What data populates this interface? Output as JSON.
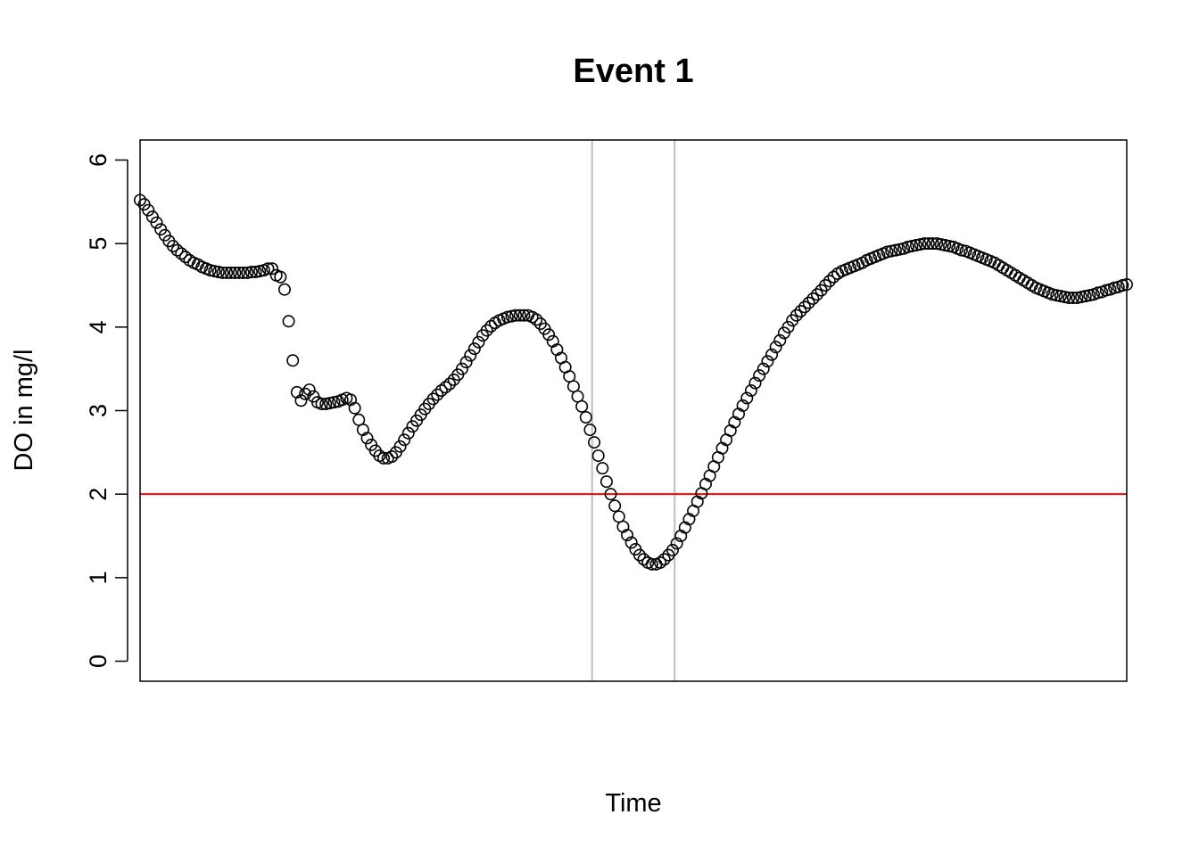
{
  "chart_data": {
    "type": "scatter",
    "title": "Event 1",
    "xlabel": "Time",
    "ylabel": "DO in mg/l",
    "ylim": [
      -0.24,
      6.24
    ],
    "xlim": [
      0,
      239
    ],
    "yticks": [
      "0",
      "1",
      "2",
      "3",
      "4",
      "5",
      "6"
    ],
    "grid": false,
    "threshold": {
      "y": 2,
      "color": "#ff0000"
    },
    "vlines": {
      "x": [
        109.5,
        129.5
      ],
      "color": "#bebebe"
    },
    "point_color": "#000000",
    "points": [
      [
        0,
        5.52
      ],
      [
        1,
        5.47
      ],
      [
        2,
        5.4
      ],
      [
        3,
        5.32
      ],
      [
        4,
        5.25
      ],
      [
        5,
        5.17
      ],
      [
        6,
        5.1
      ],
      [
        7,
        5.03
      ],
      [
        8,
        4.97
      ],
      [
        9,
        4.92
      ],
      [
        10,
        4.88
      ],
      [
        11,
        4.84
      ],
      [
        12,
        4.8
      ],
      [
        13,
        4.77
      ],
      [
        14,
        4.75
      ],
      [
        15,
        4.72
      ],
      [
        16,
        4.7
      ],
      [
        17,
        4.68
      ],
      [
        18,
        4.67
      ],
      [
        19,
        4.66
      ],
      [
        20,
        4.65
      ],
      [
        21,
        4.65
      ],
      [
        22,
        4.65
      ],
      [
        23,
        4.65
      ],
      [
        24,
        4.65
      ],
      [
        25,
        4.65
      ],
      [
        26,
        4.65
      ],
      [
        27,
        4.66
      ],
      [
        28,
        4.66
      ],
      [
        29,
        4.67
      ],
      [
        30,
        4.68
      ],
      [
        31,
        4.7
      ],
      [
        32,
        4.7
      ],
      [
        33,
        4.62
      ],
      [
        34,
        4.6
      ],
      [
        35,
        4.45
      ],
      [
        36,
        4.07
      ],
      [
        37,
        3.6
      ],
      [
        38,
        3.22
      ],
      [
        39,
        3.12
      ],
      [
        40,
        3.2
      ],
      [
        41,
        3.25
      ],
      [
        42,
        3.17
      ],
      [
        43,
        3.1
      ],
      [
        44,
        3.08
      ],
      [
        45,
        3.08
      ],
      [
        46,
        3.09
      ],
      [
        47,
        3.1
      ],
      [
        48,
        3.11
      ],
      [
        49,
        3.13
      ],
      [
        50,
        3.15
      ],
      [
        51,
        3.13
      ],
      [
        52,
        3.03
      ],
      [
        53,
        2.89
      ],
      [
        54,
        2.77
      ],
      [
        55,
        2.67
      ],
      [
        56,
        2.59
      ],
      [
        57,
        2.52
      ],
      [
        58,
        2.46
      ],
      [
        59,
        2.43
      ],
      [
        60,
        2.43
      ],
      [
        61,
        2.45
      ],
      [
        62,
        2.5
      ],
      [
        63,
        2.57
      ],
      [
        64,
        2.65
      ],
      [
        65,
        2.73
      ],
      [
        66,
        2.81
      ],
      [
        67,
        2.88
      ],
      [
        68,
        2.95
      ],
      [
        69,
        3.02
      ],
      [
        70,
        3.08
      ],
      [
        71,
        3.14
      ],
      [
        72,
        3.19
      ],
      [
        73,
        3.24
      ],
      [
        74,
        3.28
      ],
      [
        75,
        3.32
      ],
      [
        76,
        3.37
      ],
      [
        77,
        3.43
      ],
      [
        78,
        3.5
      ],
      [
        79,
        3.58
      ],
      [
        80,
        3.66
      ],
      [
        81,
        3.74
      ],
      [
        82,
        3.82
      ],
      [
        83,
        3.9
      ],
      [
        84,
        3.96
      ],
      [
        85,
        4.01
      ],
      [
        86,
        4.05
      ],
      [
        87,
        4.08
      ],
      [
        88,
        4.1
      ],
      [
        89,
        4.12
      ],
      [
        90,
        4.13
      ],
      [
        91,
        4.14
      ],
      [
        92,
        4.14
      ],
      [
        93,
        4.14
      ],
      [
        94,
        4.14
      ],
      [
        95,
        4.12
      ],
      [
        96,
        4.09
      ],
      [
        97,
        4.04
      ],
      [
        98,
        3.98
      ],
      [
        99,
        3.91
      ],
      [
        100,
        3.83
      ],
      [
        101,
        3.73
      ],
      [
        102,
        3.63
      ],
      [
        103,
        3.52
      ],
      [
        104,
        3.41
      ],
      [
        105,
        3.29
      ],
      [
        106,
        3.17
      ],
      [
        107,
        3.05
      ],
      [
        108,
        2.92
      ],
      [
        109,
        2.77
      ],
      [
        110,
        2.62
      ],
      [
        111,
        2.46
      ],
      [
        112,
        2.31
      ],
      [
        113,
        2.15
      ],
      [
        114,
        2.0
      ],
      [
        115,
        1.86
      ],
      [
        116,
        1.73
      ],
      [
        117,
        1.61
      ],
      [
        118,
        1.51
      ],
      [
        119,
        1.42
      ],
      [
        120,
        1.34
      ],
      [
        121,
        1.27
      ],
      [
        122,
        1.22
      ],
      [
        123,
        1.18
      ],
      [
        124,
        1.16
      ],
      [
        125,
        1.16
      ],
      [
        126,
        1.18
      ],
      [
        127,
        1.22
      ],
      [
        128,
        1.27
      ],
      [
        129,
        1.33
      ],
      [
        130,
        1.41
      ],
      [
        131,
        1.5
      ],
      [
        132,
        1.6
      ],
      [
        133,
        1.7
      ],
      [
        134,
        1.8
      ],
      [
        135,
        1.91
      ],
      [
        136,
        2.01
      ],
      [
        137,
        2.12
      ],
      [
        138,
        2.22
      ],
      [
        139,
        2.33
      ],
      [
        140,
        2.44
      ],
      [
        141,
        2.55
      ],
      [
        142,
        2.65
      ],
      [
        143,
        2.76
      ],
      [
        144,
        2.86
      ],
      [
        145,
        2.96
      ],
      [
        146,
        3.06
      ],
      [
        147,
        3.15
      ],
      [
        148,
        3.24
      ],
      [
        149,
        3.33
      ],
      [
        150,
        3.42
      ],
      [
        151,
        3.5
      ],
      [
        152,
        3.59
      ],
      [
        153,
        3.67
      ],
      [
        154,
        3.76
      ],
      [
        155,
        3.84
      ],
      [
        156,
        3.93
      ],
      [
        157,
        4.0
      ],
      [
        158,
        4.08
      ],
      [
        159,
        4.14
      ],
      [
        160,
        4.19
      ],
      [
        161,
        4.24
      ],
      [
        162,
        4.29
      ],
      [
        163,
        4.34
      ],
      [
        164,
        4.39
      ],
      [
        165,
        4.44
      ],
      [
        166,
        4.5
      ],
      [
        167,
        4.55
      ],
      [
        168,
        4.6
      ],
      [
        169,
        4.64
      ],
      [
        170,
        4.67
      ],
      [
        171,
        4.69
      ],
      [
        172,
        4.71
      ],
      [
        173,
        4.73
      ],
      [
        174,
        4.75
      ],
      [
        175,
        4.77
      ],
      [
        176,
        4.8
      ],
      [
        177,
        4.82
      ],
      [
        178,
        4.84
      ],
      [
        179,
        4.86
      ],
      [
        180,
        4.88
      ],
      [
        181,
        4.9
      ],
      [
        182,
        4.91
      ],
      [
        183,
        4.92
      ],
      [
        184,
        4.93
      ],
      [
        185,
        4.94
      ],
      [
        186,
        4.96
      ],
      [
        187,
        4.97
      ],
      [
        188,
        4.98
      ],
      [
        189,
        4.99
      ],
      [
        190,
        5.0
      ],
      [
        191,
        5.0
      ],
      [
        192,
        5.0
      ],
      [
        193,
        5.0
      ],
      [
        194,
        4.99
      ],
      [
        195,
        4.98
      ],
      [
        196,
        4.97
      ],
      [
        197,
        4.96
      ],
      [
        198,
        4.94
      ],
      [
        199,
        4.92
      ],
      [
        200,
        4.91
      ],
      [
        201,
        4.89
      ],
      [
        202,
        4.87
      ],
      [
        203,
        4.85
      ],
      [
        204,
        4.83
      ],
      [
        205,
        4.81
      ],
      [
        206,
        4.79
      ],
      [
        207,
        4.77
      ],
      [
        208,
        4.74
      ],
      [
        209,
        4.71
      ],
      [
        210,
        4.68
      ],
      [
        211,
        4.65
      ],
      [
        212,
        4.62
      ],
      [
        213,
        4.59
      ],
      [
        214,
        4.56
      ],
      [
        215,
        4.53
      ],
      [
        216,
        4.5
      ],
      [
        217,
        4.47
      ],
      [
        218,
        4.45
      ],
      [
        219,
        4.43
      ],
      [
        220,
        4.41
      ],
      [
        221,
        4.39
      ],
      [
        222,
        4.38
      ],
      [
        223,
        4.37
      ],
      [
        224,
        4.36
      ],
      [
        225,
        4.35
      ],
      [
        226,
        4.35
      ],
      [
        227,
        4.35
      ],
      [
        228,
        4.36
      ],
      [
        229,
        4.37
      ],
      [
        230,
        4.38
      ],
      [
        231,
        4.39
      ],
      [
        232,
        4.41
      ],
      [
        233,
        4.42
      ],
      [
        234,
        4.44
      ],
      [
        235,
        4.45
      ],
      [
        236,
        4.47
      ],
      [
        237,
        4.48
      ],
      [
        238,
        4.5
      ],
      [
        239,
        4.51
      ]
    ]
  }
}
